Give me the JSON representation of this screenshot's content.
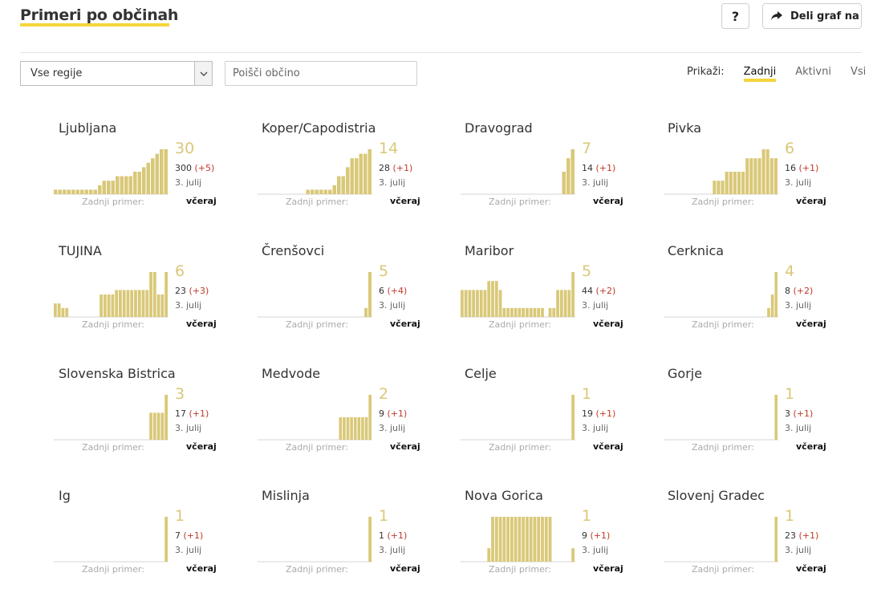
{
  "header": {
    "title": "Primeri po občinah",
    "help_label": "?",
    "share_label": "Deli graf na"
  },
  "filters": {
    "region_selected": "Vse regije",
    "search_placeholder": "Poišči občino",
    "show_label": "Prikaži:",
    "options": [
      "Zadnji",
      "Aktivni",
      "Vsi"
    ],
    "active_option": "Zadnji"
  },
  "colors": {
    "bar": "#d9c878",
    "accent": "#f5d53b",
    "delta": "#c0392b"
  },
  "cards": [
    {
      "name": "Ljubljana",
      "recent": "30",
      "total": "300",
      "delta": "(+5)",
      "date": "3. julij",
      "last_label": "Zadnji primer:",
      "last_value": "včeraj",
      "bars": [
        1,
        1,
        1,
        1,
        1,
        1,
        1,
        1,
        1,
        1,
        2,
        3,
        3,
        3,
        4,
        4,
        4,
        4,
        5,
        5,
        6,
        7,
        8,
        9,
        10,
        10
      ]
    },
    {
      "name": "Koper/Capodistria",
      "recent": "14",
      "total": "28",
      "delta": "(+1)",
      "date": "3. julij",
      "last_label": "Zadnji primer:",
      "last_value": "včeraj",
      "bars": [
        0,
        0,
        0,
        0,
        0,
        0,
        0,
        0,
        0,
        0,
        0,
        1,
        1,
        1,
        1,
        1,
        1,
        2,
        4,
        4,
        6,
        8,
        8,
        9,
        9,
        10
      ]
    },
    {
      "name": "Dravograd",
      "recent": "7",
      "total": "14",
      "delta": "(+1)",
      "date": "3. julij",
      "last_label": "Zadnji primer:",
      "last_value": "včeraj",
      "bars": [
        0,
        0,
        0,
        0,
        0,
        0,
        0,
        0,
        0,
        0,
        0,
        0,
        0,
        0,
        0,
        0,
        0,
        0,
        0,
        0,
        0,
        0,
        0,
        5,
        8,
        10
      ]
    },
    {
      "name": "Pivka",
      "recent": "6",
      "total": "16",
      "delta": "(+1)",
      "date": "3. julij",
      "last_label": "Zadnji primer:",
      "last_value": "včeraj",
      "bars": [
        0,
        0,
        0,
        0,
        0,
        0,
        0,
        0,
        0,
        0,
        0,
        0,
        3,
        3,
        3,
        5,
        5,
        5,
        5,
        5,
        8,
        8,
        8,
        8,
        10,
        10,
        8,
        8
      ]
    },
    {
      "name": "TUJINA",
      "recent": "6",
      "total": "23",
      "delta": "(+3)",
      "date": "3. julij",
      "last_label": "Zadnji primer:",
      "last_value": "včeraj",
      "bars": [
        3,
        3,
        2,
        2,
        0,
        0,
        0,
        0,
        0,
        0,
        0,
        0,
        5,
        5,
        5,
        5,
        6,
        6,
        6,
        6,
        6,
        6,
        6,
        6,
        6,
        10,
        10,
        5,
        5,
        10
      ]
    },
    {
      "name": "Črenšovci",
      "recent": "5",
      "total": "6",
      "delta": "(+4)",
      "date": "3. julij",
      "last_label": "Zadnji primer:",
      "last_value": "včeraj",
      "bars": [
        0,
        0,
        0,
        0,
        0,
        0,
        0,
        0,
        0,
        0,
        0,
        0,
        0,
        0,
        0,
        0,
        0,
        0,
        0,
        0,
        0,
        0,
        0,
        0,
        0,
        0,
        0,
        2,
        10
      ]
    },
    {
      "name": "Maribor",
      "recent": "5",
      "total": "44",
      "delta": "(+2)",
      "date": "3. julij",
      "last_label": "Zadnji primer:",
      "last_value": "včeraj",
      "bars": [
        6,
        6,
        6,
        6,
        6,
        6,
        6,
        8,
        8,
        8,
        6,
        2,
        2,
        2,
        2,
        2,
        2,
        2,
        2,
        2,
        2,
        2,
        0,
        2,
        2,
        6,
        6,
        6,
        6,
        10
      ]
    },
    {
      "name": "Cerknica",
      "recent": "4",
      "total": "8",
      "delta": "(+2)",
      "date": "3. julij",
      "last_label": "Zadnji primer:",
      "last_value": "včeraj",
      "bars": [
        0,
        0,
        0,
        0,
        0,
        0,
        0,
        0,
        0,
        0,
        0,
        0,
        0,
        0,
        0,
        0,
        0,
        0,
        0,
        0,
        0,
        0,
        0,
        0,
        0,
        0,
        0,
        0,
        2,
        5,
        10
      ]
    },
    {
      "name": "Slovenska Bistrica",
      "recent": "3",
      "total": "17",
      "delta": "(+1)",
      "date": "3. julij",
      "last_label": "Zadnji primer:",
      "last_value": "včeraj",
      "bars": [
        0,
        0,
        0,
        0,
        0,
        0,
        0,
        0,
        0,
        0,
        0,
        0,
        0,
        0,
        0,
        0,
        0,
        0,
        0,
        0,
        0,
        0,
        0,
        0,
        0,
        6,
        6,
        6,
        6,
        10
      ]
    },
    {
      "name": "Medvode",
      "recent": "2",
      "total": "9",
      "delta": "(+1)",
      "date": "3. julij",
      "last_label": "Zadnji primer:",
      "last_value": "včeraj",
      "bars": [
        0,
        0,
        0,
        0,
        0,
        0,
        0,
        0,
        0,
        0,
        0,
        0,
        0,
        0,
        0,
        0,
        0,
        0,
        0,
        0,
        0,
        0,
        5,
        5,
        5,
        5,
        5,
        5,
        5,
        5,
        10
      ]
    },
    {
      "name": "Celje",
      "recent": "1",
      "total": "19",
      "delta": "(+1)",
      "date": "3. julij",
      "last_label": "Zadnji primer:",
      "last_value": "včeraj",
      "bars": [
        0,
        0,
        0,
        0,
        0,
        0,
        0,
        0,
        0,
        0,
        0,
        0,
        0,
        0,
        0,
        0,
        0,
        0,
        0,
        0,
        0,
        0,
        0,
        0,
        0,
        0,
        0,
        0,
        0,
        10
      ]
    },
    {
      "name": "Gorje",
      "recent": "1",
      "total": "3",
      "delta": "(+1)",
      "date": "3. julij",
      "last_label": "Zadnji primer:",
      "last_value": "včeraj",
      "bars": [
        0,
        0,
        0,
        0,
        0,
        0,
        0,
        0,
        0,
        0,
        0,
        0,
        0,
        0,
        0,
        0,
        0,
        0,
        0,
        0,
        0,
        0,
        0,
        0,
        0,
        0,
        0,
        0,
        0,
        0,
        10
      ]
    },
    {
      "name": "Ig",
      "recent": "1",
      "total": "7",
      "delta": "(+1)",
      "date": "3. julij",
      "last_label": "Zadnji primer:",
      "last_value": "včeraj",
      "bars": [
        0,
        0,
        0,
        0,
        0,
        0,
        0,
        0,
        0,
        0,
        0,
        0,
        0,
        0,
        0,
        0,
        0,
        0,
        0,
        0,
        0,
        0,
        0,
        0,
        0,
        0,
        0,
        0,
        0,
        10
      ]
    },
    {
      "name": "Mislinja",
      "recent": "1",
      "total": "1",
      "delta": "(+1)",
      "date": "3. julij",
      "last_label": "Zadnji primer:",
      "last_value": "včeraj",
      "bars": [
        0,
        0,
        0,
        0,
        0,
        0,
        0,
        0,
        0,
        0,
        0,
        0,
        0,
        0,
        0,
        0,
        0,
        0,
        0,
        0,
        0,
        0,
        0,
        0,
        0,
        0,
        0,
        0,
        0,
        10
      ]
    },
    {
      "name": "Nova Gorica",
      "recent": "1",
      "total": "9",
      "delta": "(+1)",
      "date": "3. julij",
      "last_label": "Zadnji primer:",
      "last_value": "včeraj",
      "bars": [
        0,
        0,
        0,
        0,
        0,
        0,
        0,
        3,
        10,
        10,
        10,
        10,
        10,
        10,
        10,
        10,
        10,
        10,
        10,
        10,
        10,
        10,
        10,
        10,
        0,
        0,
        0,
        0,
        0,
        3
      ]
    },
    {
      "name": "Slovenj Gradec",
      "recent": "1",
      "total": "23",
      "delta": "(+1)",
      "date": "3. julij",
      "last_label": "Zadnji primer:",
      "last_value": "včeraj",
      "bars": [
        0,
        0,
        0,
        0,
        0,
        0,
        0,
        0,
        0,
        0,
        0,
        0,
        0,
        0,
        0,
        0,
        0,
        0,
        0,
        0,
        0,
        0,
        0,
        0,
        0,
        0,
        0,
        0,
        0,
        0,
        10
      ]
    }
  ]
}
